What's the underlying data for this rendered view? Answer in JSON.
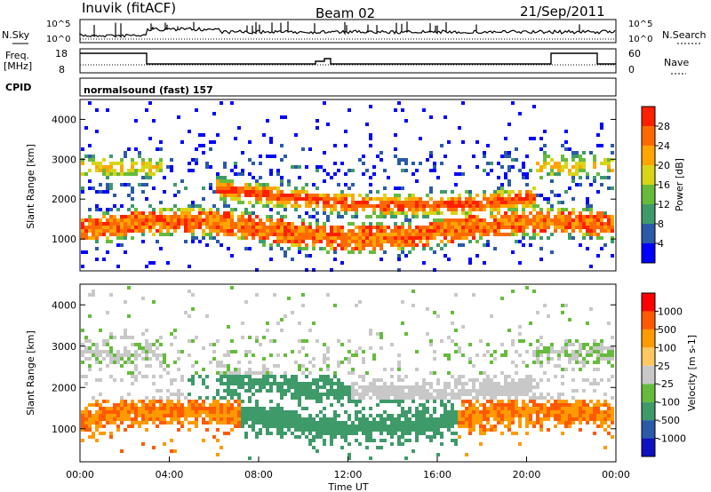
{
  "header": {
    "station": "Inuvik (fitACF)",
    "beam": "Beam 02",
    "date": "21/Sep/2011"
  },
  "panel_labels": {
    "nsky": "N.Sky",
    "nsearch": "N.Search",
    "freq_line1": "Freq.",
    "freq_line2": "[MHz]",
    "nave": "Nave",
    "cpid": "CPID",
    "mode": "normalsound (fast) 157"
  },
  "noise_axis": {
    "top": "10^5",
    "bottom": "10^0"
  },
  "freq_axis": {
    "left_ticks": [
      "18",
      "8"
    ],
    "right_ticks": [
      "60",
      "0"
    ]
  },
  "colors": {
    "power_scale": [
      "#0000ff",
      "#2a5aa8",
      "#3f9a6a",
      "#66bb3c",
      "#d8d418",
      "#ffa500",
      "#ff6a00",
      "#ff2000"
    ],
    "velocity_scale": [
      "#ff0000",
      "#ff5a00",
      "#ff9a00",
      "#ffc860",
      "#c8c8c8",
      "#66bb3c",
      "#3f9a6a",
      "#2a5aa8",
      "#1010c0"
    ]
  },
  "chart_data": [
    {
      "type": "heatmap",
      "xlabel": "Time UT",
      "ylabel": "Slant Range [km]",
      "x_ticks": [
        "00:00",
        "04:00",
        "08:00",
        "12:00",
        "16:00",
        "20:00",
        "00:00"
      ],
      "y_ticks": [
        "1000",
        "2000",
        "3000",
        "4000"
      ],
      "ylim": [
        200,
        4500
      ],
      "colorbar": {
        "label": "Power [dB]",
        "ticks": [
          "4",
          "8",
          "12",
          "16",
          "20",
          "24",
          "28"
        ]
      }
    },
    {
      "type": "heatmap",
      "xlabel": "Time UT",
      "ylabel": "Slant Range [km]",
      "x_ticks": [
        "00:00",
        "04:00",
        "08:00",
        "12:00",
        "16:00",
        "20:00",
        "00:00"
      ],
      "y_ticks": [
        "1000",
        "2000",
        "3000",
        "4000"
      ],
      "ylim": [
        200,
        4500
      ],
      "colorbar": {
        "label": "Velocity [m s-1]",
        "ticks": [
          "1000",
          "500",
          "100",
          "25",
          "-25",
          "-100",
          "-500",
          "-1000"
        ]
      }
    }
  ]
}
